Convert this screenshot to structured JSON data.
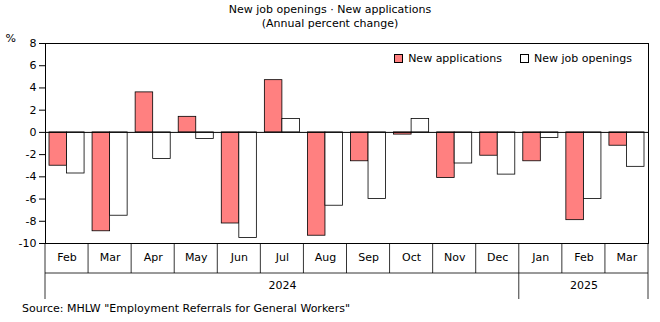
{
  "chart_data": {
    "type": "bar",
    "title": "New job openings · New applications",
    "subtitle": "(Annual percent change)",
    "y_label": "%",
    "source": "Source: MHLW \"Employment Referrals for General Workers\"",
    "categories": [
      "Feb",
      "Mar",
      "Apr",
      "May",
      "Jun",
      "Jul",
      "Aug",
      "Sep",
      "Oct",
      "Nov",
      "Dec",
      "Jan",
      "Feb",
      "Mar"
    ],
    "category_years": [
      "2024",
      "2024",
      "2024",
      "2024",
      "2024",
      "2024",
      "2024",
      "2024",
      "2024",
      "2024",
      "2024",
      "2025",
      "2025",
      "2025"
    ],
    "series": [
      {
        "name": "New applications",
        "color": "#ff8080",
        "values": [
          -3.0,
          -8.9,
          3.6,
          1.4,
          -8.2,
          4.7,
          -9.3,
          -2.6,
          -0.2,
          -4.1,
          -2.1,
          -2.6,
          -7.9,
          -1.2
        ]
      },
      {
        "name": "New job openings",
        "color": "#ffffff",
        "values": [
          -3.7,
          -7.5,
          -2.4,
          -0.6,
          -9.5,
          1.2,
          -6.6,
          -6.0,
          1.2,
          -2.8,
          -3.8,
          -0.5,
          -6.0,
          -3.1
        ]
      }
    ],
    "ylim": [
      -10,
      8
    ],
    "yticks": [
      -10,
      -8,
      -6,
      -4,
      -2,
      0,
      2,
      4,
      6,
      8
    ],
    "grid": false,
    "legend": "top-right"
  }
}
